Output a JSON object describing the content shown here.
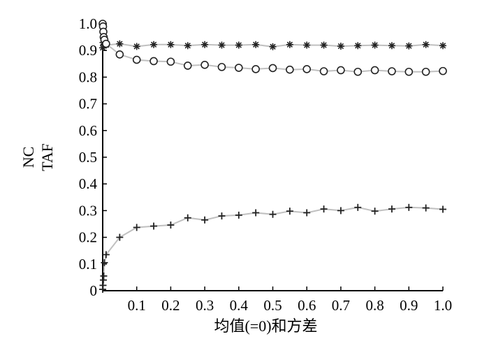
{
  "chart_data": {
    "type": "line",
    "xlabel": "均值(=0)和方差",
    "ylabel": [
      "NC",
      "TAF"
    ],
    "xlim": [
      0,
      1.0
    ],
    "ylim": [
      0,
      1.0
    ],
    "x_tick_labels": [
      "0.1",
      "0.2",
      "0.3",
      "0.4",
      "0.5",
      "0.6",
      "0.7",
      "0.8",
      "0.9",
      "1.0"
    ],
    "y_tick_labels": [
      "0",
      "0.1",
      "0.2",
      "0.3",
      "0.4",
      "0.5",
      "0.6",
      "0.7",
      "0.8",
      "0.9",
      "1.0"
    ],
    "grid": false,
    "legend": "none",
    "line_color": "#c0c0c0",
    "marker_color": "#222222",
    "series": [
      {
        "marker": "asterisk",
        "x": [
          0,
          0.001,
          0.002,
          0.003,
          0.005,
          0.01,
          0.05,
          0.1,
          0.15,
          0.2,
          0.25,
          0.3,
          0.35,
          0.4,
          0.45,
          0.5,
          0.55,
          0.6,
          0.65,
          0.7,
          0.75,
          0.8,
          0.85,
          0.9,
          0.95,
          1.0
        ],
        "y": [
          0.91,
          0.93,
          0.95,
          0.93,
          0.92,
          0.92,
          0.925,
          0.915,
          0.922,
          0.922,
          0.918,
          0.922,
          0.92,
          0.92,
          0.922,
          0.914,
          0.922,
          0.92,
          0.92,
          0.916,
          0.918,
          0.92,
          0.918,
          0.917,
          0.922,
          0.918
        ]
      },
      {
        "marker": "circle",
        "x": [
          0,
          0.001,
          0.002,
          0.003,
          0.005,
          0.01,
          0.05,
          0.1,
          0.15,
          0.2,
          0.25,
          0.3,
          0.35,
          0.4,
          0.45,
          0.5,
          0.55,
          0.6,
          0.65,
          0.7,
          0.75,
          0.8,
          0.85,
          0.9,
          0.95,
          1.0
        ],
        "y": [
          1.0,
          0.99,
          0.97,
          0.95,
          0.94,
          0.925,
          0.885,
          0.865,
          0.86,
          0.858,
          0.843,
          0.846,
          0.838,
          0.835,
          0.83,
          0.834,
          0.828,
          0.83,
          0.822,
          0.826,
          0.82,
          0.826,
          0.822,
          0.82,
          0.82,
          0.823
        ]
      },
      {
        "marker": "plus",
        "x": [
          0,
          0.001,
          0.002,
          0.003,
          0.005,
          0.01,
          0.05,
          0.1,
          0.15,
          0.2,
          0.25,
          0.3,
          0.35,
          0.4,
          0.45,
          0.5,
          0.55,
          0.6,
          0.65,
          0.7,
          0.75,
          0.8,
          0.85,
          0.9,
          0.95,
          1.0
        ],
        "y": [
          0.005,
          0.02,
          0.04,
          0.055,
          0.105,
          0.135,
          0.2,
          0.237,
          0.242,
          0.246,
          0.273,
          0.265,
          0.28,
          0.283,
          0.292,
          0.286,
          0.298,
          0.292,
          0.306,
          0.3,
          0.312,
          0.298,
          0.306,
          0.312,
          0.31,
          0.305
        ]
      }
    ]
  }
}
